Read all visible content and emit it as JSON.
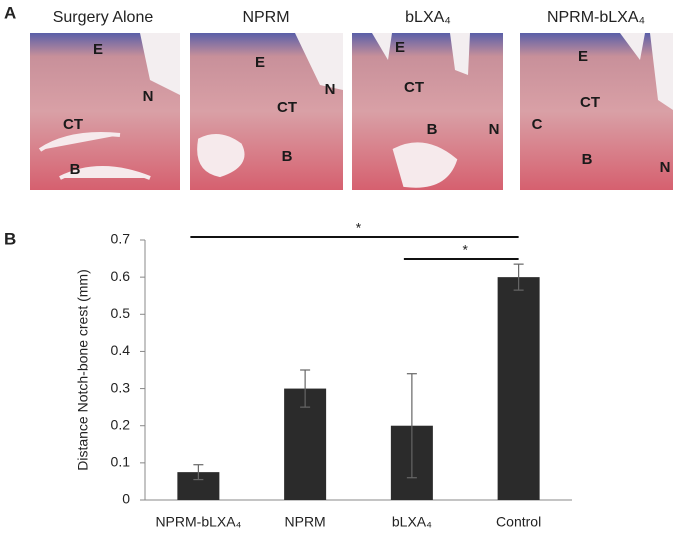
{
  "panel_a": {
    "letter": "A",
    "panels": [
      {
        "title": "Surgery Alone",
        "labels": [
          "E",
          "N",
          "CT",
          "B"
        ]
      },
      {
        "title": "NPRM",
        "labels": [
          "E",
          "CT",
          "N",
          "B"
        ]
      },
      {
        "title": "bLXA₄",
        "labels": [
          "E",
          "CT",
          "B",
          "N"
        ]
      },
      {
        "title": "NPRM-bLXA₄",
        "labels": [
          "E",
          "CT",
          "C",
          "B",
          "N"
        ]
      }
    ]
  },
  "chart_data": {
    "type": "bar",
    "letter": "B",
    "y_label": "Distance Notch-bone crest (mm)",
    "categories": [
      "NPRM-bLXA₄",
      "NPRM",
      "bLXA₄",
      "Control"
    ],
    "values": [
      0.075,
      0.3,
      0.2,
      0.6
    ],
    "errors": [
      0.02,
      0.05,
      0.14,
      0.035
    ],
    "color": "#2b2b2b",
    "ylim": [
      0,
      0.7
    ],
    "yticks": [
      0,
      0.1,
      0.2,
      0.3,
      0.4,
      0.5,
      0.6,
      0.7
    ],
    "annotations": [
      "*",
      "*"
    ]
  }
}
